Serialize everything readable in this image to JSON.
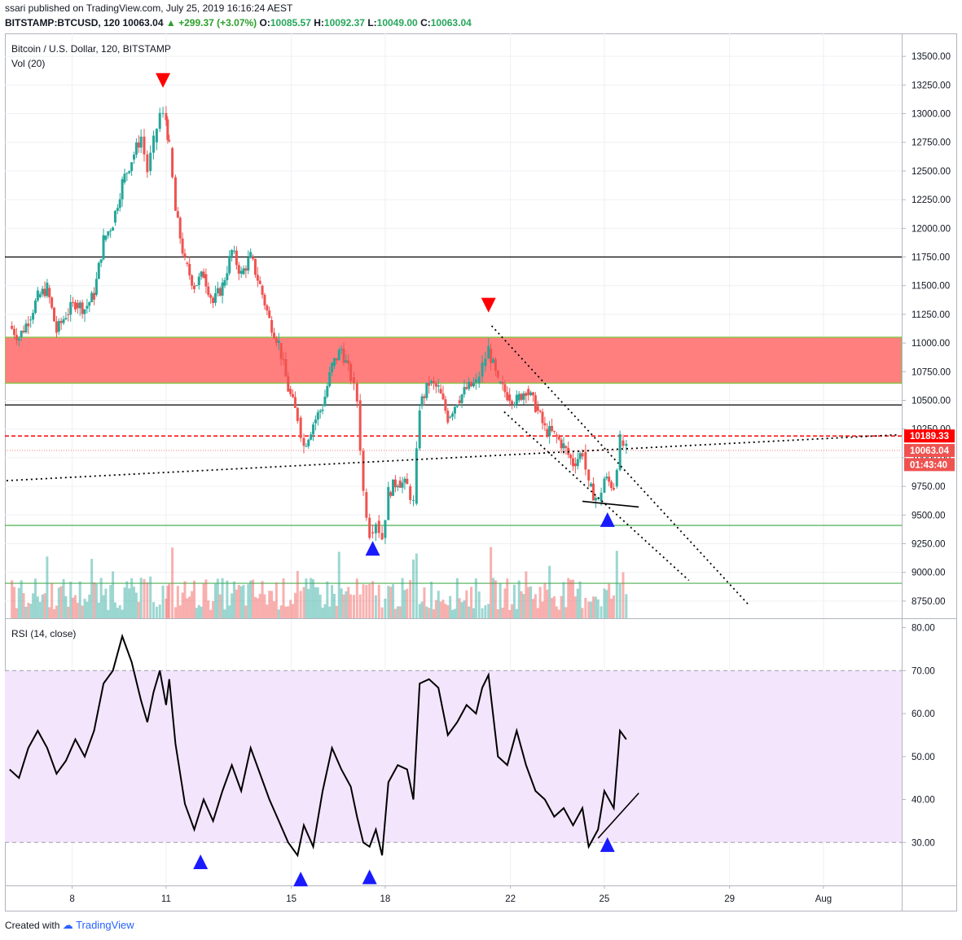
{
  "header": {
    "publisher_line": "ssari published on TradingView.com, July 25, 2019 16:16:24 AEST",
    "symbol": "BITSTAMP:BTCUSD, 120",
    "last": "10063.04",
    "change": "▲ +299.37 (+3.07%)",
    "o_label": "O:",
    "o_value": "10085.57",
    "h_label": "H:",
    "h_value": "10092.37",
    "l_label": "L:",
    "l_value": "10049.00",
    "c_label": "C:",
    "c_value": "10063.04"
  },
  "footer": {
    "created_with": "Created with",
    "brand": "TradingView"
  },
  "colors": {
    "up": "#26a69a",
    "down": "#ef5350",
    "resistance_zone": "#ff7f7f",
    "rsi_band": "#f3e5fc",
    "marker_up": "#1a1aff",
    "marker_down": "#ff0000"
  },
  "chart_data": [
    {
      "type": "candlestick",
      "title": "Bitcoin / U.S. Dollar, 120, BITSTAMP",
      "volume_label": "Vol (20)",
      "ylim": [
        8600,
        13700
      ],
      "y_ticks": [
        "13500.00",
        "13250.00",
        "13000.00",
        "12750.00",
        "12500.00",
        "12250.00",
        "12000.00",
        "11750.00",
        "11500.00",
        "11250.00",
        "11000.00",
        "10750.00",
        "10500.00",
        "10250.00",
        "10000.00",
        "9750.00",
        "9500.00",
        "9250.00",
        "9000.00",
        "8750.00"
      ],
      "x_ticks": [
        "8",
        "11",
        "15",
        "18",
        "22",
        "25",
        "29",
        "Aug"
      ],
      "x_tick_values": [
        8,
        11,
        15,
        18,
        22,
        25,
        29,
        32
      ],
      "xlim": [
        5.85,
        34.5
      ],
      "price_labels": [
        {
          "text": "10189.33",
          "value": 10189.33,
          "color": "#ff0000"
        },
        {
          "text": "10063.04",
          "value": 10063.04,
          "color": "#ef5350"
        },
        {
          "text": "01:43:40",
          "value": 9940,
          "color": "#ef5350"
        }
      ],
      "horizontal_levels": [
        {
          "value": 11750,
          "color": "#000000"
        },
        {
          "value": 10460,
          "color": "#000000"
        },
        {
          "value": 9410,
          "color": "#4caf50"
        },
        {
          "value": 8905,
          "color": "#4caf50"
        }
      ],
      "resistance_zone": [
        10650,
        11050
      ],
      "close_series": [
        [
          6.0,
          11150
        ],
        [
          6.3,
          11050
        ],
        [
          6.6,
          11200
        ],
        [
          6.9,
          11400
        ],
        [
          7.2,
          11480
        ],
        [
          7.5,
          11100
        ],
        [
          7.8,
          11250
        ],
        [
          8.1,
          11350
        ],
        [
          8.4,
          11300
        ],
        [
          8.7,
          11420
        ],
        [
          9.0,
          11900
        ],
        [
          9.3,
          12050
        ],
        [
          9.6,
          12400
        ],
        [
          9.9,
          12600
        ],
        [
          10.2,
          12800
        ],
        [
          10.4,
          12500
        ],
        [
          10.6,
          12750
        ],
        [
          10.8,
          13000
        ],
        [
          11.0,
          12950
        ],
        [
          11.1,
          12700
        ],
        [
          11.3,
          12150
        ],
        [
          11.6,
          11700
        ],
        [
          11.9,
          11500
        ],
        [
          12.2,
          11600
        ],
        [
          12.5,
          11350
        ],
        [
          12.8,
          11500
        ],
        [
          13.1,
          11800
        ],
        [
          13.4,
          11600
        ],
        [
          13.7,
          11750
        ],
        [
          14.0,
          11500
        ],
        [
          14.3,
          11200
        ],
        [
          14.6,
          11000
        ],
        [
          14.9,
          10600
        ],
        [
          15.2,
          10350
        ],
        [
          15.4,
          10100
        ],
        [
          15.7,
          10300
        ],
        [
          16.0,
          10450
        ],
        [
          16.3,
          10800
        ],
        [
          16.6,
          10950
        ],
        [
          16.9,
          10700
        ],
        [
          17.1,
          10500
        ],
        [
          17.3,
          9700
        ],
        [
          17.5,
          9350
        ],
        [
          17.7,
          9450
        ],
        [
          17.9,
          9300
        ],
        [
          18.1,
          9700
        ],
        [
          18.4,
          9800
        ],
        [
          18.7,
          9750
        ],
        [
          18.9,
          9600
        ],
        [
          19.1,
          10450
        ],
        [
          19.4,
          10650
        ],
        [
          19.7,
          10600
        ],
        [
          20.0,
          10350
        ],
        [
          20.3,
          10500
        ],
        [
          20.6,
          10600
        ],
        [
          20.9,
          10650
        ],
        [
          21.1,
          10800
        ],
        [
          21.3,
          10950
        ],
        [
          21.6,
          10650
        ],
        [
          21.9,
          10550
        ],
        [
          22.2,
          10500
        ],
        [
          22.5,
          10600
        ],
        [
          22.8,
          10450
        ],
        [
          23.1,
          10250
        ],
        [
          23.4,
          10200
        ],
        [
          23.7,
          10100
        ],
        [
          24.0,
          9950
        ],
        [
          24.3,
          10050
        ],
        [
          24.5,
          9750
        ],
        [
          24.8,
          9620
        ],
        [
          25.0,
          9820
        ],
        [
          25.3,
          9750
        ],
        [
          25.5,
          10150
        ],
        [
          25.7,
          10063
        ]
      ],
      "trendlines": [
        {
          "from": [
            5.9,
            9800
          ],
          "to": [
            34.4,
            10200
          ],
          "style": "dotted"
        },
        {
          "from": [
            21.4,
            11150
          ],
          "to": [
            29.6,
            8720
          ],
          "style": "dotted"
        },
        {
          "from": [
            21.8,
            10400
          ],
          "to": [
            27.7,
            8930
          ],
          "style": "dotted"
        },
        {
          "from": [
            24.3,
            9620
          ],
          "to": [
            26.1,
            9570
          ],
          "style": "solid"
        }
      ],
      "markers": [
        {
          "x": 10.9,
          "y": 13290,
          "shape": "down"
        },
        {
          "x": 21.3,
          "y": 11330,
          "shape": "down"
        },
        {
          "x": 17.6,
          "y": 9210,
          "shape": "up"
        },
        {
          "x": 25.1,
          "y": 9460,
          "shape": "up"
        }
      ]
    },
    {
      "type": "line",
      "title": "RSI (14, close)",
      "ylim": [
        20,
        82
      ],
      "y_ticks": [
        "80.00",
        "70.00",
        "60.00",
        "50.00",
        "40.00",
        "30.00"
      ],
      "band": [
        30,
        70
      ],
      "x": [
        6.0,
        6.3,
        6.6,
        6.9,
        7.2,
        7.5,
        7.8,
        8.1,
        8.4,
        8.7,
        9.0,
        9.3,
        9.6,
        9.9,
        10.2,
        10.4,
        10.6,
        10.8,
        11.0,
        11.1,
        11.3,
        11.6,
        11.9,
        12.2,
        12.5,
        12.8,
        13.1,
        13.4,
        13.7,
        14.0,
        14.3,
        14.6,
        14.9,
        15.2,
        15.4,
        15.7,
        16.0,
        16.3,
        16.6,
        16.9,
        17.1,
        17.3,
        17.5,
        17.7,
        17.9,
        18.1,
        18.4,
        18.7,
        18.9,
        19.1,
        19.4,
        19.7,
        20.0,
        20.3,
        20.6,
        20.9,
        21.1,
        21.3,
        21.6,
        21.9,
        22.2,
        22.5,
        22.8,
        23.1,
        23.4,
        23.7,
        24.0,
        24.3,
        24.5,
        24.8,
        25.0,
        25.3,
        25.5,
        25.7
      ],
      "values": [
        47,
        45,
        52,
        56,
        52,
        46,
        49,
        54,
        50,
        56,
        67,
        70,
        78,
        72,
        63,
        58,
        65,
        70,
        62,
        68,
        53,
        39,
        33,
        40,
        35,
        42,
        48,
        42,
        52,
        46,
        40,
        35,
        30,
        27,
        34,
        29,
        42,
        52,
        47,
        43,
        36,
        30,
        29,
        33,
        27,
        44,
        48,
        47,
        40,
        67,
        68,
        66,
        55,
        58,
        62,
        60,
        66,
        69,
        50,
        48,
        56,
        48,
        42,
        40,
        36,
        38,
        34,
        38,
        29,
        33,
        42,
        38,
        56,
        54
      ],
      "trendlines": [
        {
          "from": [
            24.8,
            31
          ],
          "to": [
            26.1,
            41.5
          ],
          "style": "solid"
        }
      ],
      "markers": [
        {
          "x": 12.1,
          "y": 25.5,
          "shape": "up"
        },
        {
          "x": 15.3,
          "y": 21.5,
          "shape": "up"
        },
        {
          "x": 17.5,
          "y": 22,
          "shape": "up"
        },
        {
          "x": 25.1,
          "y": 29.5,
          "shape": "up"
        }
      ]
    }
  ]
}
